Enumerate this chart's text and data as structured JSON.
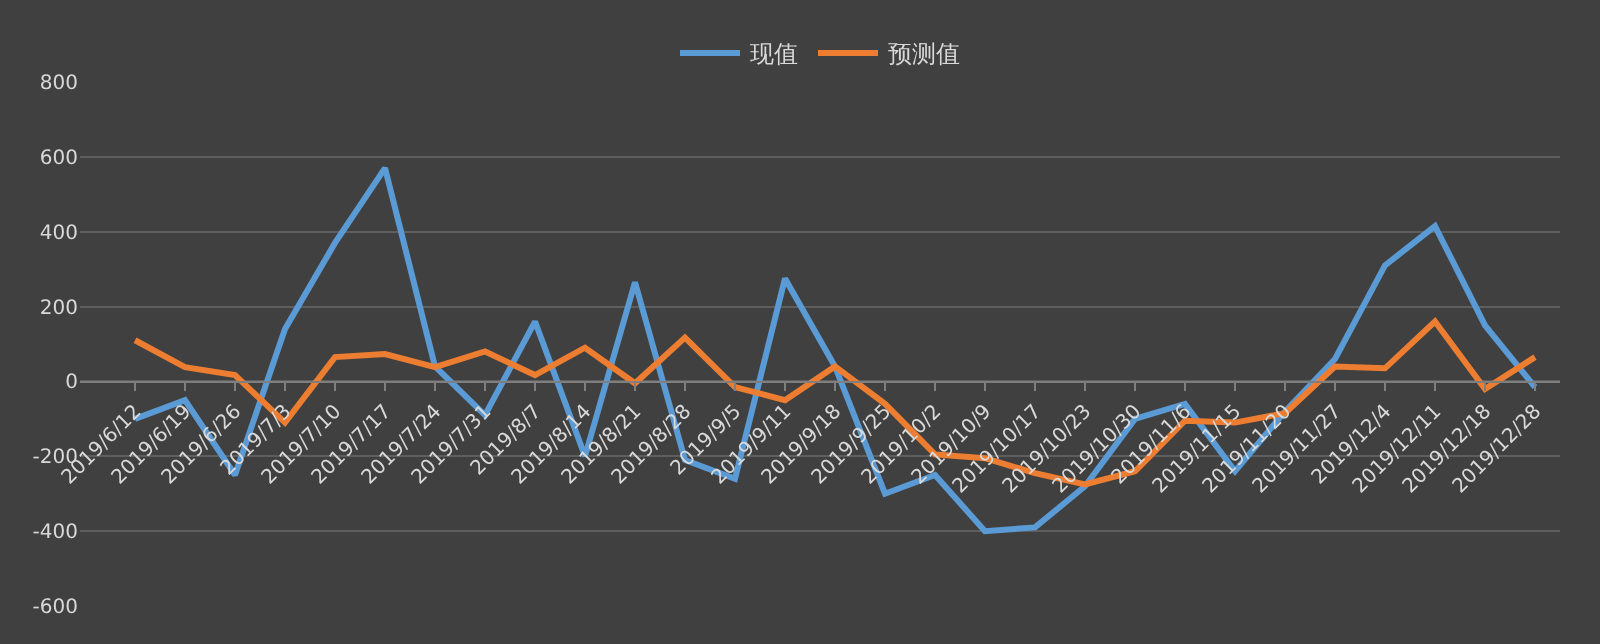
{
  "chart_data": {
    "type": "line",
    "categories": [
      "2019/6/12",
      "2019/6/19",
      "2019/6/26",
      "2019/7/3",
      "2019/7/10",
      "2019/7/17",
      "2019/7/24",
      "2019/7/31",
      "2019/8/7",
      "2019/8/14",
      "2019/8/21",
      "2019/8/28",
      "2019/9/5",
      "2019/9/11",
      "2019/9/18",
      "2019/9/25",
      "2019/10/2",
      "2019/10/9",
      "2019/10/17",
      "2019/10/23",
      "2019/10/30",
      "2019/11/6",
      "2019/11/15",
      "2019/11/20",
      "2019/11/27",
      "2019/12/4",
      "2019/12/11",
      "2019/12/18",
      "2019/12/28"
    ],
    "series": [
      {
        "name": "现值",
        "color": "#5b9bd5",
        "values": [
          -100,
          -50,
          -250,
          140,
          370,
          570,
          40,
          -90,
          160,
          -200,
          265,
          -210,
          -260,
          275,
          40,
          -300,
          -250,
          -400,
          -390,
          -280,
          -100,
          -60,
          -240,
          -80,
          60,
          310,
          415,
          150,
          -15
        ]
      },
      {
        "name": "预测值",
        "color": "#ed7d31",
        "values": [
          110,
          38,
          17,
          -110,
          65,
          73,
          38,
          80,
          17,
          90,
          -5,
          117,
          -15,
          -50,
          40,
          -60,
          -195,
          -205,
          -245,
          -275,
          -240,
          -105,
          -110,
          -85,
          40,
          35,
          160,
          -20,
          65
        ]
      }
    ],
    "ylim": [
      -600,
      800
    ],
    "yticks": [
      -600,
      -400,
      -200,
      0,
      200,
      400,
      600,
      800
    ],
    "grid": "y",
    "legend": "top",
    "marker": "none",
    "line_style": "solid"
  }
}
